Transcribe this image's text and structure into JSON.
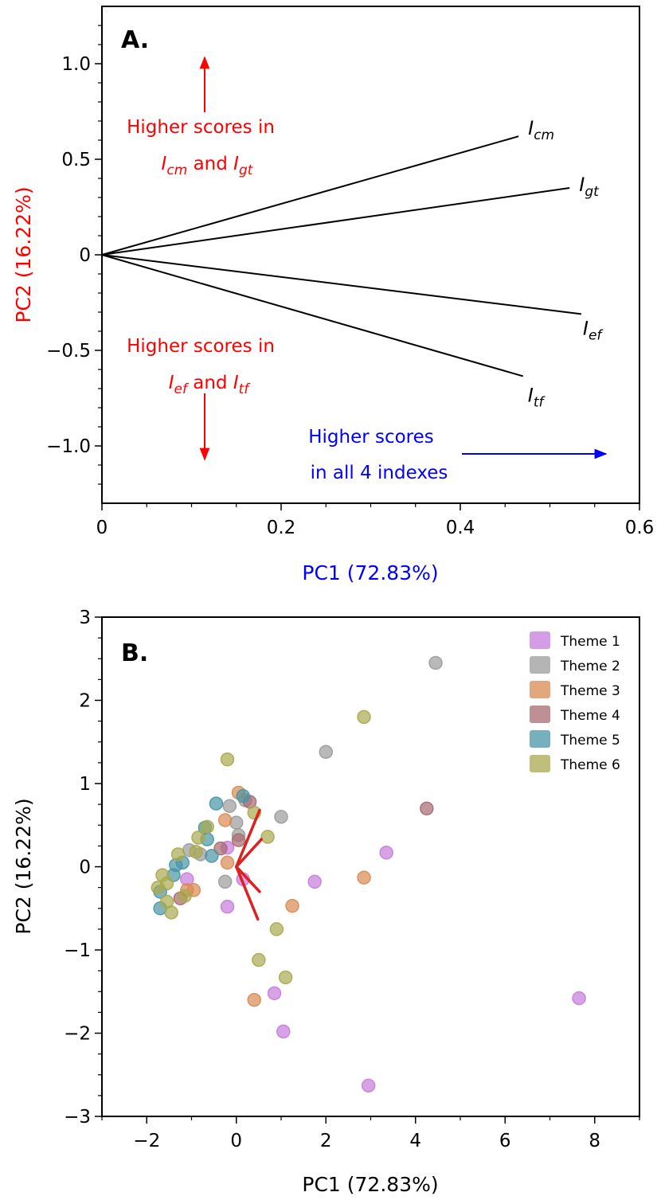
{
  "chart_data": [
    {
      "panel": "A.",
      "type": "line",
      "subtype": "pca-loadings-biplot",
      "xlabel": "PC1 (72.83%)",
      "ylabel": "PC2 (16.22%)",
      "xlabel_color": "#0000ff",
      "ylabel_color": "#ff0000",
      "xlim": [
        0,
        0.6
      ],
      "ylim": [
        -1.3,
        1.3
      ],
      "xticks": [
        0,
        0.2,
        0.4,
        0.6
      ],
      "xtick_labels": [
        "0",
        "0.2",
        "0.4",
        "0.6"
      ],
      "yticks": [
        1.0,
        0.5,
        0,
        -0.5,
        -1.0
      ],
      "ytick_labels": [
        "1.0",
        "0.5",
        "0",
        "−0.5",
        "−1.0"
      ],
      "grid": false,
      "loadings": [
        {
          "base": "I",
          "sub": "cm",
          "x": 0.465,
          "y": 0.62
        },
        {
          "base": "I",
          "sub": "gt",
          "x": 0.522,
          "y": 0.35
        },
        {
          "base": "I",
          "sub": "ef",
          "x": 0.535,
          "y": -0.31
        },
        {
          "base": "I",
          "sub": "tf",
          "x": 0.47,
          "y": -0.635
        }
      ],
      "annotations": {
        "upper_line1": "Higher scores in",
        "upper_line2": {
          "a": "I",
          "a_sub": "cm",
          "mid": " and ",
          "b": "I",
          "b_sub": "gt"
        },
        "lower_line1": "Higher scores in",
        "lower_line2": {
          "a": "I",
          "a_sub": "ef",
          "mid": " and ",
          "b": "I",
          "b_sub": "tf"
        },
        "right_line1": "Higher scores",
        "right_line2": "in all 4 indexes",
        "red_color": "#ff0000",
        "blue_color": "#0000ff"
      }
    },
    {
      "panel": "B.",
      "type": "scatter",
      "xlabel": "PC1 (72.83%)",
      "ylabel": "PC2 (16.22%)",
      "xlim": [
        -3,
        9
      ],
      "ylim": [
        -3,
        3
      ],
      "xticks": [
        -2,
        0,
        2,
        4,
        6,
        8
      ],
      "xtick_labels": [
        "−2",
        "0",
        "2",
        "4",
        "6",
        "8"
      ],
      "yticks": [
        3,
        2,
        1,
        0,
        -1,
        -2,
        -3
      ],
      "ytick_labels": [
        "3",
        "2",
        "1",
        "0",
        "−1",
        "−2",
        "−3"
      ],
      "grid": false,
      "legend_position": "top-right",
      "loading_vectors_color": "#dd2020",
      "loading_vectors": [
        {
          "x": 0.52,
          "y": 0.68
        },
        {
          "x": 0.56,
          "y": 0.33
        },
        {
          "x": 0.52,
          "y": -0.3
        },
        {
          "x": 0.48,
          "y": -0.63
        }
      ],
      "series": [
        {
          "name": "Theme 1",
          "color": "#c77cdc",
          "points": [
            [
              -0.2,
              0.23
            ],
            [
              0.15,
              -0.15
            ],
            [
              -0.2,
              -0.48
            ],
            [
              1.75,
              -0.18
            ],
            [
              3.35,
              0.17
            ],
            [
              7.65,
              -1.58
            ],
            [
              0.85,
              -1.52
            ],
            [
              1.05,
              -1.98
            ],
            [
              2.95,
              -2.63
            ],
            [
              -1.1,
              -0.15
            ]
          ]
        },
        {
          "name": "Theme 2",
          "color": "#9b9b9b",
          "points": [
            [
              4.45,
              2.45
            ],
            [
              2.0,
              1.38
            ],
            [
              -0.15,
              0.73
            ],
            [
              1.0,
              0.6
            ],
            [
              0.0,
              0.53
            ],
            [
              0.05,
              0.38
            ],
            [
              -0.25,
              -0.18
            ],
            [
              -1.05,
              0.2
            ],
            [
              -0.8,
              0.15
            ],
            [
              0.2,
              0.8
            ]
          ]
        },
        {
          "name": "Theme 3",
          "color": "#d98a52",
          "points": [
            [
              0.05,
              0.89
            ],
            [
              -0.25,
              0.56
            ],
            [
              -0.2,
              0.05
            ],
            [
              2.85,
              -0.13
            ],
            [
              1.25,
              -0.47
            ],
            [
              0.4,
              -1.6
            ],
            [
              -0.95,
              -0.28
            ],
            [
              -1.1,
              -0.28
            ]
          ]
        },
        {
          "name": "Theme 4",
          "color": "#a86a70",
          "points": [
            [
              4.25,
              0.7
            ],
            [
              0.3,
              0.78
            ],
            [
              0.05,
              0.32
            ],
            [
              -0.35,
              0.22
            ],
            [
              -1.25,
              -0.38
            ]
          ]
        },
        {
          "name": "Theme 5",
          "color": "#4796a6",
          "points": [
            [
              -0.45,
              0.76
            ],
            [
              0.15,
              0.85
            ],
            [
              -0.7,
              0.47
            ],
            [
              -0.65,
              0.33
            ],
            [
              -0.55,
              0.13
            ],
            [
              -1.2,
              0.05
            ],
            [
              -1.4,
              -0.1
            ],
            [
              -1.7,
              -0.3
            ],
            [
              -1.7,
              -0.5
            ],
            [
              -1.35,
              0.02
            ]
          ]
        },
        {
          "name": "Theme 6",
          "color": "#a9a94f",
          "points": [
            [
              2.85,
              1.8
            ],
            [
              -0.2,
              1.29
            ],
            [
              0.4,
              0.65
            ],
            [
              0.7,
              0.36
            ],
            [
              -0.65,
              0.48
            ],
            [
              -0.85,
              0.35
            ],
            [
              -0.9,
              0.18
            ],
            [
              -1.3,
              0.15
            ],
            [
              -1.65,
              -0.1
            ],
            [
              -1.55,
              -0.2
            ],
            [
              -1.75,
              -0.25
            ],
            [
              -1.55,
              -0.42
            ],
            [
              -1.45,
              -0.55
            ],
            [
              -1.15,
              -0.35
            ],
            [
              0.9,
              -0.75
            ],
            [
              0.5,
              -1.12
            ],
            [
              1.1,
              -1.33
            ]
          ]
        }
      ]
    }
  ]
}
